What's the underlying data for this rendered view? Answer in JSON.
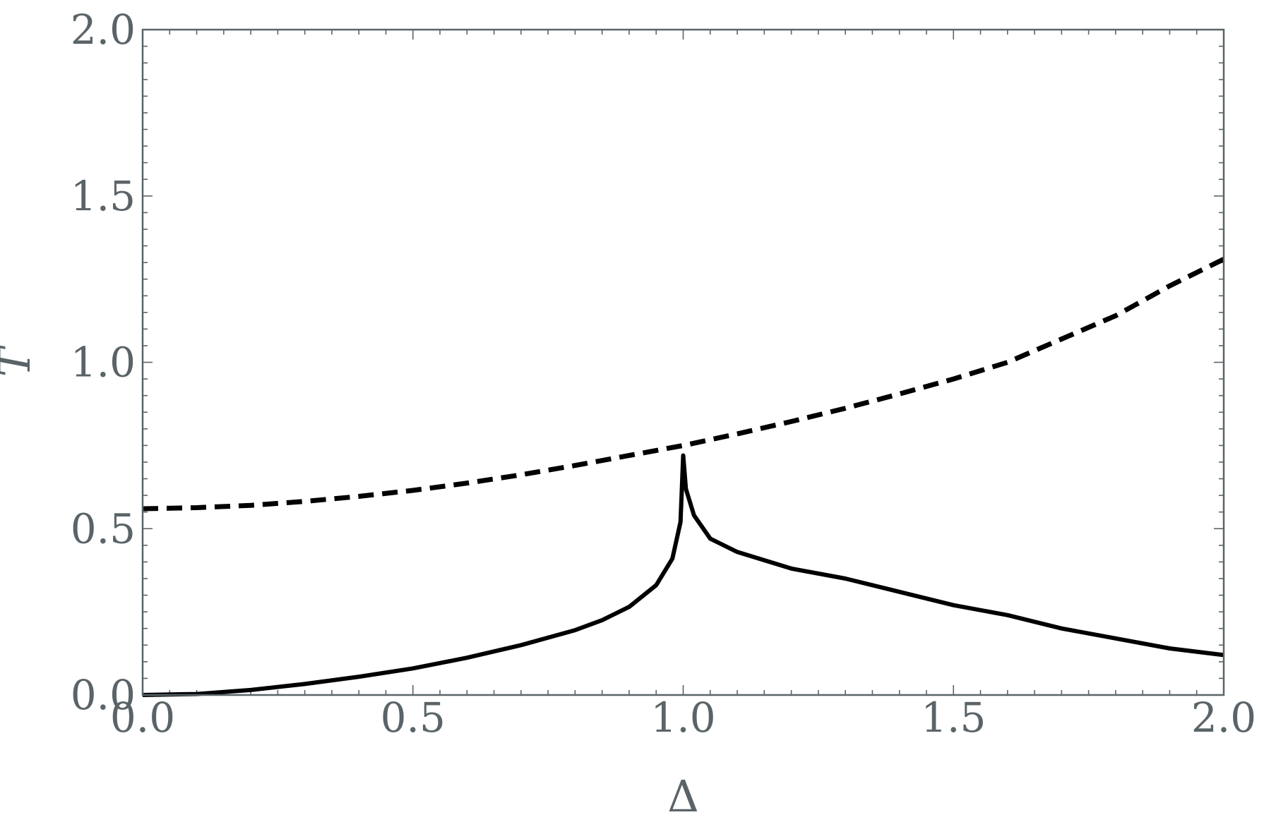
{
  "chart_data": {
    "type": "line",
    "xlabel": "Δ",
    "ylabel": "T",
    "xlim": [
      0,
      2
    ],
    "ylim": [
      0,
      2
    ],
    "x_ticks": [
      "0.0",
      "0.5",
      "1.0",
      "1.5",
      "2.0"
    ],
    "y_ticks": [
      "0.0",
      "0.5",
      "1.0",
      "1.5",
      "2.0"
    ],
    "grid": false,
    "series": [
      {
        "style": "dashed",
        "color": "#000000",
        "x": [
          0.0,
          0.1,
          0.2,
          0.3,
          0.4,
          0.5,
          0.6,
          0.7,
          0.8,
          0.9,
          1.0,
          1.1,
          1.2,
          1.3,
          1.4,
          1.5,
          1.6,
          1.7,
          1.8,
          1.9,
          2.0
        ],
        "y": [
          0.56,
          0.563,
          0.57,
          0.582,
          0.597,
          0.615,
          0.637,
          0.662,
          0.69,
          0.72,
          0.75,
          0.785,
          0.822,
          0.862,
          0.905,
          0.95,
          1.0,
          1.07,
          1.14,
          1.23,
          1.31
        ]
      },
      {
        "style": "solid",
        "color": "#000000",
        "x": [
          0.0,
          0.1,
          0.2,
          0.3,
          0.4,
          0.5,
          0.6,
          0.7,
          0.8,
          0.85,
          0.9,
          0.95,
          0.98,
          0.995,
          1.0,
          1.005,
          1.02,
          1.05,
          1.1,
          1.15,
          1.2,
          1.3,
          1.4,
          1.5,
          1.6,
          1.7,
          1.8,
          1.9,
          2.0
        ],
        "y": [
          0.0,
          0.003,
          0.015,
          0.033,
          0.055,
          0.08,
          0.112,
          0.15,
          0.195,
          0.225,
          0.265,
          0.33,
          0.41,
          0.52,
          0.72,
          0.62,
          0.54,
          0.47,
          0.43,
          0.405,
          0.38,
          0.35,
          0.31,
          0.27,
          0.24,
          0.2,
          0.17,
          0.14,
          0.12
        ]
      }
    ]
  }
}
